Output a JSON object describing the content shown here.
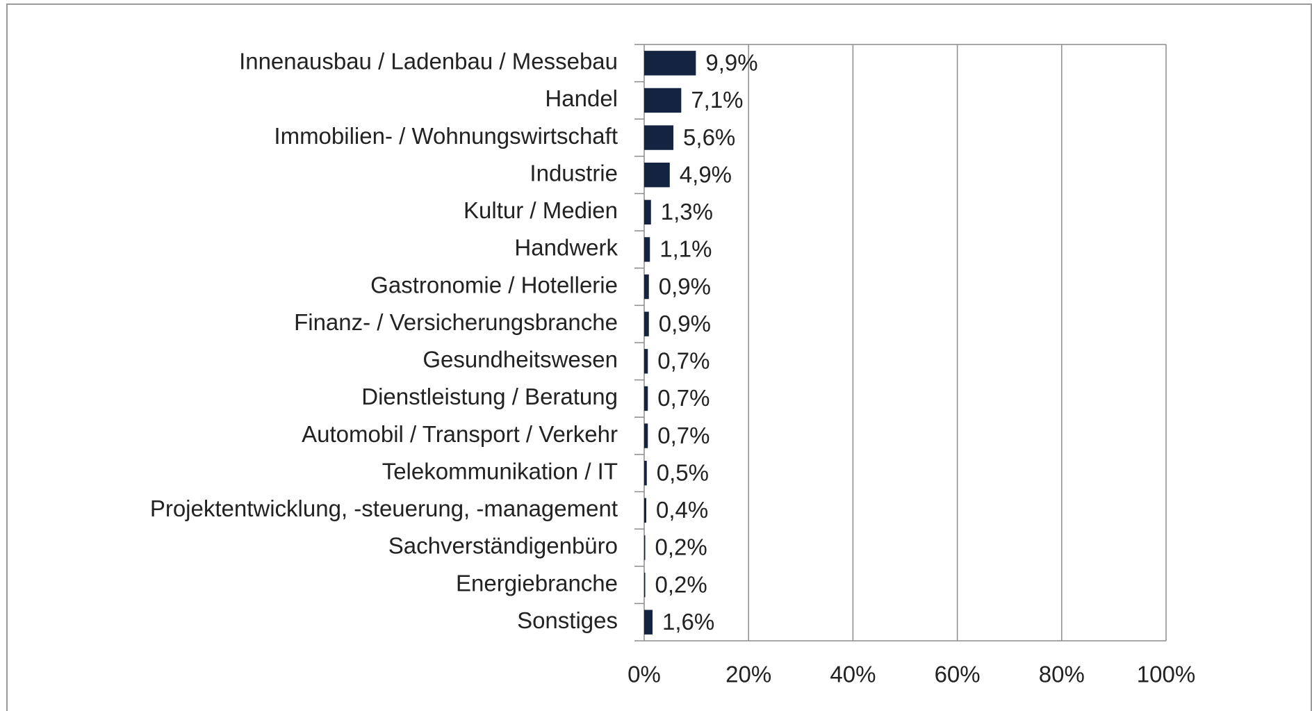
{
  "chart_data": {
    "type": "barh",
    "categories": [
      "Innenausbau / Ladenbau / Messebau",
      "Handel",
      "Immobilien- / Wohnungswirtschaft",
      "Industrie",
      "Kultur / Medien",
      "Handwerk",
      "Gastronomie / Hotellerie",
      "Finanz- / Versicherungsbranche",
      "Gesundheitswesen",
      "Dienstleistung / Beratung",
      "Automobil / Transport / Verkehr",
      "Telekommunikation / IT",
      "Projektentwicklung, -steuerung, -management",
      "Sachverständigenbüro",
      "Energiebranche",
      "Sonstiges"
    ],
    "values": [
      9.9,
      7.1,
      5.6,
      4.9,
      1.3,
      1.1,
      0.9,
      0.9,
      0.7,
      0.7,
      0.7,
      0.5,
      0.4,
      0.2,
      0.2,
      1.6
    ],
    "value_labels": [
      "9,9%",
      "7,1%",
      "5,6%",
      "4,9%",
      "1,3%",
      "1,1%",
      "0,9%",
      "0,9%",
      "0,7%",
      "0,7%",
      "0,7%",
      "0,5%",
      "0,4%",
      "0,2%",
      "0,2%",
      "1,6%"
    ],
    "color": "#14233f",
    "xlim": [
      0,
      100
    ],
    "xticks": [
      {
        "value": 0,
        "label": "0%"
      },
      {
        "value": 20,
        "label": "20%"
      },
      {
        "value": 40,
        "label": "40%"
      },
      {
        "value": 60,
        "label": "60%"
      },
      {
        "value": 80,
        "label": "80%"
      },
      {
        "value": 100,
        "label": "100%"
      }
    ],
    "grid": true
  }
}
